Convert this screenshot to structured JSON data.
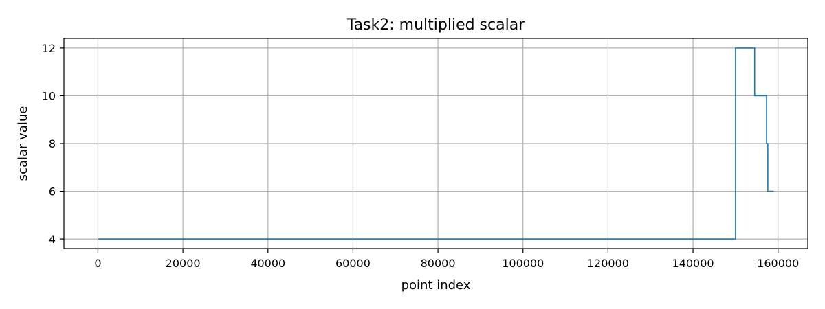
{
  "chart_data": {
    "type": "line",
    "title": "Task2: multiplied scalar",
    "xlabel": "point index",
    "ylabel": "scalar value",
    "xlim": [
      -8000,
      167000
    ],
    "ylim": [
      3.6,
      12.4
    ],
    "x_ticks": [
      0,
      20000,
      40000,
      60000,
      80000,
      100000,
      120000,
      140000,
      160000
    ],
    "y_ticks": [
      4,
      6,
      8,
      10,
      12
    ],
    "grid": true,
    "series": [
      {
        "color": "#1f77b4",
        "step": "post",
        "x": [
          0,
          150000,
          154500,
          157300,
          157600,
          159000
        ],
        "y": [
          4,
          12,
          10,
          8,
          6,
          6
        ]
      }
    ]
  }
}
